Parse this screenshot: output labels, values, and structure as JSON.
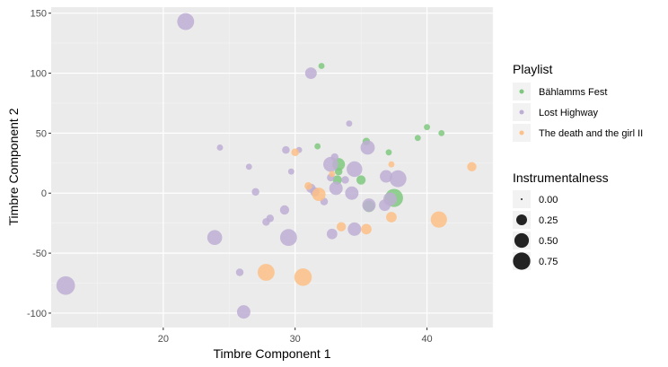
{
  "chart_data": {
    "type": "scatter",
    "xlabel": "Timbre Component 1",
    "ylabel": "Timbre Component 2",
    "xlim": [
      11.5,
      45
    ],
    "ylim": [
      -112,
      155
    ],
    "x_ticks": [
      20,
      30,
      40
    ],
    "y_ticks": [
      -100,
      -50,
      0,
      50,
      100,
      150
    ],
    "x_tick_labels": [
      "20",
      "30",
      "40"
    ],
    "y_tick_labels": [
      "-100",
      "-50",
      "0",
      "50",
      "100",
      "150"
    ],
    "grid": true,
    "legend_position": "right",
    "color_legend": {
      "title": "Playlist",
      "entries": [
        {
          "label": "Bählamms Fest",
          "color": "#7fc97f"
        },
        {
          "label": "Lost Highway",
          "color": "#beaed4"
        },
        {
          "label": "The death and the girl II",
          "color": "#fdc086"
        }
      ]
    },
    "size_legend": {
      "title": "Instrumentalness",
      "entries": [
        {
          "label": "0.00",
          "value": 0.0
        },
        {
          "label": "0.25",
          "value": 0.25
        },
        {
          "label": "0.50",
          "value": 0.5
        },
        {
          "label": "0.75",
          "value": 0.75
        }
      ]
    },
    "series": [
      {
        "name": "Bählamms Fest",
        "color": "#7fc97f",
        "points": [
          {
            "x": 32.0,
            "y": 106,
            "s": 0.02
          },
          {
            "x": 31.7,
            "y": 39,
            "s": 0.02
          },
          {
            "x": 33.3,
            "y": 24,
            "s": 0.25
          },
          {
            "x": 33.3,
            "y": 18,
            "s": 0.05
          },
          {
            "x": 33.2,
            "y": 11,
            "s": 0.1
          },
          {
            "x": 35.4,
            "y": 43,
            "s": 0.05
          },
          {
            "x": 35.0,
            "y": 11,
            "s": 0.1
          },
          {
            "x": 35.6,
            "y": -11,
            "s": 0.2
          },
          {
            "x": 37.1,
            "y": 34,
            "s": 0.02
          },
          {
            "x": 37.5,
            "y": -4,
            "s": 0.65
          },
          {
            "x": 39.3,
            "y": 46,
            "s": 0.02
          },
          {
            "x": 40.0,
            "y": 55,
            "s": 0.02
          },
          {
            "x": 41.1,
            "y": 50,
            "s": 0.02
          }
        ]
      },
      {
        "name": "Lost Highway",
        "color": "#beaed4",
        "points": [
          {
            "x": 21.7,
            "y": 143,
            "s": 0.55
          },
          {
            "x": 12.6,
            "y": -77,
            "s": 0.7
          },
          {
            "x": 31.2,
            "y": 100,
            "s": 0.2
          },
          {
            "x": 24.3,
            "y": 38,
            "s": 0.02
          },
          {
            "x": 26.5,
            "y": 22,
            "s": 0.02
          },
          {
            "x": 27.0,
            "y": 1,
            "s": 0.05
          },
          {
            "x": 29.3,
            "y": 36,
            "s": 0.05
          },
          {
            "x": 29.7,
            "y": 18,
            "s": 0.02
          },
          {
            "x": 30.3,
            "y": 36,
            "s": 0.02
          },
          {
            "x": 29.2,
            "y": -14,
            "s": 0.1
          },
          {
            "x": 28.1,
            "y": -21,
            "s": 0.05
          },
          {
            "x": 27.8,
            "y": -24,
            "s": 0.05
          },
          {
            "x": 23.9,
            "y": -37,
            "s": 0.4
          },
          {
            "x": 25.8,
            "y": -66,
            "s": 0.05
          },
          {
            "x": 26.1,
            "y": -99,
            "s": 0.3
          },
          {
            "x": 29.5,
            "y": -37,
            "s": 0.55
          },
          {
            "x": 31.2,
            "y": 4,
            "s": 0.1
          },
          {
            "x": 31.5,
            "y": 1,
            "s": 0.1
          },
          {
            "x": 32.2,
            "y": -7,
            "s": 0.05
          },
          {
            "x": 32.7,
            "y": 24,
            "s": 0.4
          },
          {
            "x": 33.0,
            "y": 30,
            "s": 0.05
          },
          {
            "x": 32.7,
            "y": 13,
            "s": 0.05
          },
          {
            "x": 33.1,
            "y": 4,
            "s": 0.3
          },
          {
            "x": 33.8,
            "y": 11,
            "s": 0.05
          },
          {
            "x": 34.1,
            "y": 58,
            "s": 0.02
          },
          {
            "x": 34.3,
            "y": 0,
            "s": 0.3
          },
          {
            "x": 34.5,
            "y": 20,
            "s": 0.45
          },
          {
            "x": 32.8,
            "y": -34,
            "s": 0.15
          },
          {
            "x": 34.5,
            "y": -30,
            "s": 0.3
          },
          {
            "x": 35.5,
            "y": 38,
            "s": 0.35
          },
          {
            "x": 35.6,
            "y": -10,
            "s": 0.3
          },
          {
            "x": 36.9,
            "y": 14,
            "s": 0.25
          },
          {
            "x": 36.8,
            "y": -10,
            "s": 0.2
          },
          {
            "x": 37.8,
            "y": 12,
            "s": 0.55
          },
          {
            "x": 37.2,
            "y": -5,
            "s": 0.3
          }
        ]
      },
      {
        "name": "The death and the girl II",
        "color": "#fdc086",
        "points": [
          {
            "x": 30.0,
            "y": 34,
            "s": 0.05
          },
          {
            "x": 31.0,
            "y": 6,
            "s": 0.05
          },
          {
            "x": 31.8,
            "y": -1,
            "s": 0.3
          },
          {
            "x": 32.8,
            "y": 16,
            "s": 0.02
          },
          {
            "x": 33.5,
            "y": -28,
            "s": 0.1
          },
          {
            "x": 35.4,
            "y": -30,
            "s": 0.15
          },
          {
            "x": 37.3,
            "y": 24,
            "s": 0.02
          },
          {
            "x": 37.3,
            "y": -20,
            "s": 0.15
          },
          {
            "x": 40.9,
            "y": -22,
            "s": 0.5
          },
          {
            "x": 43.4,
            "y": 22,
            "s": 0.1
          },
          {
            "x": 27.8,
            "y": -66,
            "s": 0.55
          },
          {
            "x": 30.6,
            "y": -70,
            "s": 0.6
          }
        ]
      }
    ]
  }
}
